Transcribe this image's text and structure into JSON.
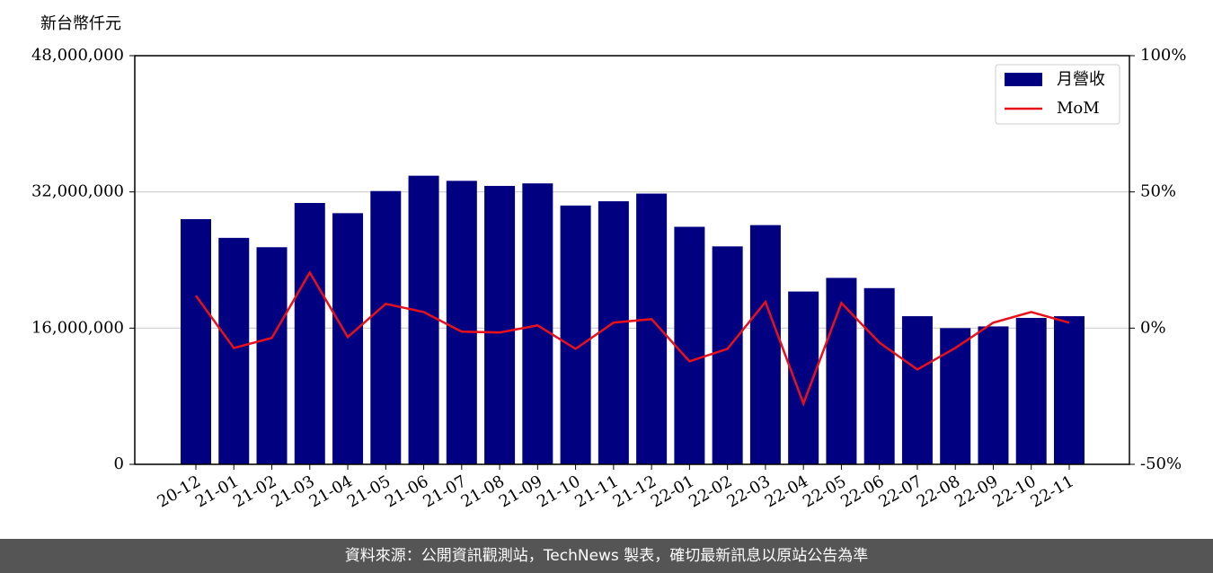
{
  "chart_data": {
    "type": "bar-line",
    "y_axis_label": "新台幣仟元",
    "categories": [
      "20-12",
      "21-01",
      "21-02",
      "21-03",
      "21-04",
      "21-05",
      "21-06",
      "21-07",
      "21-08",
      "21-09",
      "21-10",
      "21-11",
      "21-12",
      "22-01",
      "22-02",
      "22-03",
      "22-04",
      "22-05",
      "22-06",
      "22-07",
      "22-08",
      "22-09",
      "22-10",
      "22-11"
    ],
    "series": [
      {
        "name": "月營收",
        "type": "bar",
        "color": "#000080",
        "values": [
          28800000,
          26600000,
          25500000,
          30700000,
          29500000,
          32100000,
          33900000,
          33300000,
          32700000,
          33000000,
          30400000,
          30900000,
          31800000,
          27900000,
          25600000,
          28100000,
          20300000,
          21900000,
          20700000,
          17400000,
          16000000,
          16200000,
          17200000,
          17400000
        ]
      },
      {
        "name": "MoM",
        "type": "line",
        "axis": "y2",
        "color": "#e8101a",
        "values": [
          11.9,
          -7.3,
          -3.6,
          20.4,
          -3.3,
          8.9,
          5.9,
          -1.3,
          -1.6,
          1.0,
          -7.6,
          2.0,
          3.3,
          -12.2,
          -7.6,
          9.6,
          -27.7,
          9.2,
          -5.3,
          -15.2,
          -7.3,
          2.0,
          5.9,
          2.0
        ]
      }
    ],
    "ylim": [
      0,
      48000000
    ],
    "yticks": [
      0,
      {
        "value": 16000000,
        "label": "16,000,000"
      },
      {
        "value": 32000000,
        "label": "32,000,000"
      },
      {
        "value": 48000000,
        "label": "48,000,000"
      }
    ],
    "y2lim": [
      -50,
      100
    ],
    "y2ticks": [
      {
        "value": -50,
        "label": "-50%"
      },
      {
        "value": 0,
        "label": "0%"
      },
      {
        "value": 50,
        "label": "50%"
      },
      {
        "value": 100,
        "label": "100%"
      }
    ],
    "grid": true,
    "legend": "upper right"
  },
  "footer": "資料來源：公開資訊觀測站，TechNews 製表，確切最新訊息以原站公告為準"
}
